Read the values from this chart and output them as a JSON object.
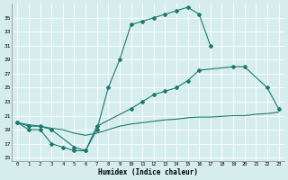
{
  "xlabel": "Humidex (Indice chaleur)",
  "xlim": [
    -0.5,
    23.5
  ],
  "ylim": [
    14.5,
    37
  ],
  "yticks": [
    15,
    17,
    19,
    21,
    23,
    25,
    27,
    29,
    31,
    33,
    35
  ],
  "xticks": [
    0,
    1,
    2,
    3,
    4,
    5,
    6,
    7,
    8,
    9,
    10,
    11,
    12,
    13,
    14,
    15,
    16,
    17,
    18,
    19,
    20,
    21,
    22,
    23
  ],
  "line_color": "#1a7a6e",
  "bg_color": "#d6eded",
  "grid_color": "#b8d8d8",
  "line1_x": [
    0,
    1,
    2,
    3,
    4,
    5,
    6,
    7,
    8,
    9,
    10,
    11,
    12,
    13,
    14,
    15,
    16,
    17
  ],
  "line1_y": [
    20,
    19,
    19,
    17,
    16.5,
    16,
    16,
    19,
    25,
    29,
    34,
    34.5,
    35,
    35.5,
    36,
    36.5,
    35.5,
    31
  ],
  "line2_x": [
    0,
    1,
    2,
    3,
    5,
    6,
    7,
    10,
    11,
    12,
    13,
    14,
    15,
    16,
    19,
    20,
    22,
    23
  ],
  "line2_y": [
    20,
    19.5,
    19.5,
    19,
    16.5,
    16,
    19.5,
    22,
    23,
    24,
    24.5,
    25,
    26,
    27.5,
    28,
    28,
    25,
    22
  ],
  "line3_x": [
    0,
    1,
    2,
    3,
    4,
    5,
    6,
    7,
    8,
    9,
    10,
    11,
    12,
    13,
    14,
    15,
    16,
    17,
    18,
    19,
    20,
    21,
    22,
    23
  ],
  "line3_y": [
    20,
    19.7,
    19.5,
    19.2,
    19,
    18.5,
    18.2,
    18.5,
    19,
    19.5,
    19.8,
    20,
    20.2,
    20.4,
    20.5,
    20.7,
    20.8,
    20.8,
    20.9,
    21,
    21,
    21.2,
    21.3,
    21.5
  ]
}
